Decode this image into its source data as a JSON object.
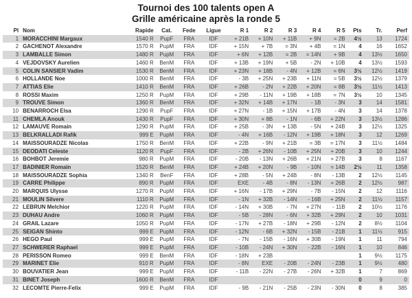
{
  "header": {
    "title": "Tournoi des 100 talents open A",
    "subtitle": "Grille américaine après la ronde 5"
  },
  "colors": {
    "stripe": "#d8d8d8",
    "text": "#3d3d3d",
    "title_text": "#1a1a1a"
  },
  "table": {
    "columns": [
      {
        "key": "pl",
        "label": "Pl"
      },
      {
        "key": "nom",
        "label": "Nom"
      },
      {
        "key": "rapide",
        "label": "Rapide"
      },
      {
        "key": "cat",
        "label": "Cat."
      },
      {
        "key": "fede",
        "label": "Fede"
      },
      {
        "key": "ligue",
        "label": "Ligue"
      },
      {
        "key": "r1",
        "label": "R 1"
      },
      {
        "key": "r2",
        "label": "R 2"
      },
      {
        "key": "r3",
        "label": "R 3"
      },
      {
        "key": "r4",
        "label": "R 4"
      },
      {
        "key": "r5",
        "label": "R 5"
      },
      {
        "key": "pts",
        "label": "Pts"
      },
      {
        "key": "tr",
        "label": "Tr."
      },
      {
        "key": "perf",
        "label": "Perf"
      }
    ],
    "rows": [
      {
        "pl": "1",
        "nom": "MORACCHINI Margaux",
        "rapide": "1540 R",
        "cat": "PupF",
        "fede": "FRA",
        "ligue": "IDF",
        "r1": "+ 21B",
        "r2": "+ 10N",
        "r3": "+ 11B",
        "r4": "+ 9N",
        "r5": "= 2B",
        "pts": "4½",
        "tr": "13",
        "perf": "1724"
      },
      {
        "pl": "2",
        "nom": "GACHENOT Alexandre",
        "rapide": "1570 R",
        "cat": "PupM",
        "fede": "FRA",
        "ligue": "IDF",
        "r1": "+ 15N",
        "r2": "+ 7B",
        "r3": "= 3N",
        "r4": "+ 4B",
        "r5": "= 1N",
        "pts": "4",
        "tr": "16",
        "perf": "1652"
      },
      {
        "pl": "3",
        "nom": "LAMBALLE Simon",
        "rapide": "1480 R",
        "cat": "PupM",
        "fede": "FRA",
        "ligue": "IDF",
        "r1": "+ 6N",
        "r2": "+ 12B",
        "r3": "= 2B",
        "r4": "= 14N",
        "r5": "+ 9B",
        "pts": "4",
        "tr": "13½",
        "perf": "1650"
      },
      {
        "pl": "4",
        "nom": "VEJDOVSKY Aurelien",
        "rapide": "1460 R",
        "cat": "BenM",
        "fede": "FRA",
        "ligue": "IDF",
        "r1": "+ 13B",
        "r2": "+ 19N",
        "r3": "+ 5B",
        "r4": "- 2N",
        "r5": "+ 10B",
        "pts": "4",
        "tr": "13½",
        "perf": "1593"
      },
      {
        "pl": "5",
        "nom": "COLIN SANSIER Vadim",
        "rapide": "1530 R",
        "cat": "BenM",
        "fede": "FRA",
        "ligue": "IDF",
        "r1": "+ 23N",
        "r2": "+ 18B",
        "r3": "- 4N",
        "r4": "+ 12B",
        "r5": "= 6N",
        "pts": "3½",
        "tr": "12½",
        "perf": "1419"
      },
      {
        "pl": "6",
        "nom": "HOLLANDE Noe",
        "rapide": "1000 R",
        "cat": "BenM",
        "fede": "FRA",
        "ligue": "IDF",
        "r1": "- 3B",
        "r2": "+ 25N",
        "r3": "+ 23B",
        "r4": "+ 11N",
        "r5": "= 5B",
        "pts": "3½",
        "tr": "12½",
        "perf": "1379"
      },
      {
        "pl": "7",
        "nom": "ATTIAS Elie",
        "rapide": "1410 R",
        "cat": "BenM",
        "fede": "FRA",
        "ligue": "IDF",
        "r1": "+ 26B",
        "r2": "- 2N",
        "r3": "+ 22B",
        "r4": "+ 20N",
        "r5": "= 8B",
        "pts": "3½",
        "tr": "11½",
        "perf": "1413"
      },
      {
        "pl": "8",
        "nom": "ROSSI Maxim",
        "rapide": "1250 R",
        "cat": "PupM",
        "fede": "FRA",
        "ligue": "IDF",
        "r1": "+ 29B",
        "r2": "- 11N",
        "r3": "+ 19B",
        "r4": "+ 18B",
        "r5": "= 7N",
        "pts": "3½",
        "tr": "10",
        "perf": "1345"
      },
      {
        "pl": "9",
        "nom": "TROUVE Simon",
        "rapide": "1360 R",
        "cat": "BenM",
        "fede": "FRA",
        "ligue": "IDF",
        "r1": "+ 32N",
        "r2": "+ 14B",
        "r3": "+ 17N",
        "r4": "- 1B",
        "r5": "- 3N",
        "pts": "3",
        "tr": "14",
        "perf": "1581"
      },
      {
        "pl": "10",
        "nom": "BENARROCH Elsa",
        "rapide": "1290 R",
        "cat": "PupF",
        "fede": "FRA",
        "ligue": "IDF",
        "r1": "+ 27N",
        "r2": "- 1B",
        "r3": "+ 15N",
        "r4": "+ 17B",
        "r5": "- 4N",
        "pts": "3",
        "tr": "14",
        "perf": "1378"
      },
      {
        "pl": "11",
        "nom": "CHEMLA Anouk",
        "rapide": "1430 R",
        "cat": "PupF",
        "fede": "FRA",
        "ligue": "IDF",
        "r1": "+ 30N",
        "r2": "+ 8B",
        "r3": "- 1N",
        "r4": "- 6B",
        "r5": "+ 22N",
        "pts": "3",
        "tr": "13½",
        "perf": "1286"
      },
      {
        "pl": "12",
        "nom": "LAMAUVE Romain",
        "rapide": "1290 R",
        "cat": "PupM",
        "fede": "FRA",
        "ligue": "IDF",
        "r1": "+ 25B",
        "r2": "- 3N",
        "r3": "+ 13B",
        "r4": "- 5N",
        "r5": "+ 24B",
        "pts": "3",
        "tr": "12½",
        "perf": "1325"
      },
      {
        "pl": "13",
        "nom": "BELKRALLADI Rafik",
        "rapide": "999 E",
        "cat": "PupM",
        "fede": "FRA",
        "ligue": "IDF",
        "r1": "- 4N",
        "r2": "+ 16B",
        "r3": "- 12N",
        "r4": "+ 19B",
        "r5": "+ 18N",
        "pts": "3",
        "tr": "12",
        "perf": "1269"
      },
      {
        "pl": "14",
        "nom": "MAISSOURADZE Nicolas",
        "rapide": "1750 R",
        "cat": "BenM",
        "fede": "FRA",
        "ligue": "IDF",
        "r1": "+ 22B",
        "r2": "- 9N",
        "r3": "+ 21B",
        "r4": "= 3B",
        "r5": "= 17N",
        "pts": "3",
        "tr": "11½",
        "perf": "1484"
      },
      {
        "pl": "15",
        "nom": "DEODATI Celeste",
        "rapide": "1120 R",
        "cat": "PupF",
        "fede": "FRA",
        "ligue": "IDF",
        "r1": "- 2B",
        "r2": "+ 26N",
        "r3": "- 10B",
        "r4": "+ 25N",
        "r5": "+ 20B",
        "pts": "3",
        "tr": "10",
        "perf": "1244"
      },
      {
        "pl": "16",
        "nom": "BOHBOT Jeremie",
        "rapide": "980 R",
        "cat": "PupM",
        "fede": "FRA",
        "ligue": "IDF",
        "r1": "- 20B",
        "r2": "- 13N",
        "r3": "+ 26B",
        "r4": "+ 21N",
        "r5": "+ 27B",
        "pts": "3",
        "tr": "8",
        "perf": "1167"
      },
      {
        "pl": "17",
        "nom": "BADINIER Romain",
        "rapide": "1520 R",
        "cat": "BenM",
        "fede": "FRA",
        "ligue": "IDF",
        "r1": "+ 24B",
        "r2": "+ 20N",
        "r3": "- 9B",
        "r4": "- 10N",
        "r5": "= 14B",
        "pts": "2½",
        "tr": "11",
        "perf": "1358"
      },
      {
        "pl": "18",
        "nom": "MAISSOURADZE Sophia",
        "rapide": "1340 R",
        "cat": "BenF",
        "fede": "FRA",
        "ligue": "IDF",
        "r1": "+ 28B",
        "r2": "- 5N",
        "r3": "+ 24B",
        "r4": "- 8N",
        "r5": "- 13B",
        "pts": "2",
        "tr": "12½",
        "perf": "1145"
      },
      {
        "pl": "19",
        "nom": "CARRE Philippe",
        "rapide": "890 R",
        "cat": "PupM",
        "fede": "FRA",
        "ligue": "IDF",
        "r1": "EXE",
        "r2": "- 4B",
        "r3": "- 8N",
        "r4": "- 13N",
        "r5": "+ 26B",
        "pts": "2",
        "tr": "12½",
        "perf": "987"
      },
      {
        "pl": "20",
        "nom": "MARQUIS Ulysse",
        "rapide": "1270 R",
        "cat": "PupM",
        "fede": "FRA",
        "ligue": "IDF",
        "r1": "+ 16N",
        "r2": "- 17B",
        "r3": "+ 29N",
        "r4": "- 7B",
        "r5": "- 15N",
        "pts": "2",
        "tr": "12",
        "perf": "1116"
      },
      {
        "pl": "21",
        "nom": "MOULIN Silvere",
        "rapide": "1110 R",
        "cat": "PupM",
        "fede": "FRA",
        "ligue": "IDF",
        "r1": "- 1N",
        "r2": "+ 32B",
        "r3": "- 14N",
        "r4": "- 16B",
        "r5": "+ 25N",
        "pts": "2",
        "tr": "11½",
        "perf": "1157"
      },
      {
        "pl": "22",
        "nom": "LEBRUN Melchior",
        "rapide": "1220 R",
        "cat": "PupM",
        "fede": "FRA",
        "ligue": "IDF",
        "r1": "- 14N",
        "r2": "+ 30B",
        "r3": "- 7N",
        "r4": "+ 27N",
        "r5": "- 11B",
        "pts": "2",
        "tr": "10½",
        "perf": "1176"
      },
      {
        "pl": "23",
        "nom": "DUHAU Andre",
        "rapide": "1060 R",
        "cat": "PupM",
        "fede": "FRA",
        "ligue": "IDF",
        "r1": "- 5B",
        "r2": "- 28N",
        "r3": "- 6N",
        "r4": "+ 32B",
        "r5": "+ 29N",
        "pts": "2",
        "tr": "10",
        "perf": "1031"
      },
      {
        "pl": "24",
        "nom": "GRAIL Lazare",
        "rapide": "1050 R",
        "cat": "PupM",
        "fede": "FRA",
        "ligue": "IDF",
        "r1": "- 17N",
        "r2": "+ 27B",
        "r3": "- 18N",
        "r4": "+ 29B",
        "r5": "- 12N",
        "pts": "2",
        "tr": "8½",
        "perf": "1104"
      },
      {
        "pl": "25",
        "nom": "SEIGAN Shinto",
        "rapide": "999 E",
        "cat": "PupM",
        "fede": "FRA",
        "ligue": "IDF",
        "r1": "- 12N",
        "r2": "- 6B",
        "r3": "+ 32N",
        "r4": "- 15B",
        "r5": "- 21B",
        "pts": "1",
        "tr": "11½",
        "perf": "915"
      },
      {
        "pl": "26",
        "nom": "HEGO Paul",
        "rapide": "999 E",
        "cat": "PupM",
        "fede": "FRA",
        "ligue": "IDF",
        "r1": "- 7N",
        "r2": "- 15B",
        "r3": "- 16N",
        "r4": "+ 30B",
        "r5": "- 19N",
        "pts": "1",
        "tr": "11",
        "perf": "794"
      },
      {
        "pl": "27",
        "nom": "SCHWERER Raphael",
        "rapide": "999 E",
        "cat": "PupM",
        "fede": "FRA",
        "ligue": "IDF",
        "r1": "- 10B",
        "r2": "- 24N",
        "r3": "+ 30N",
        "r4": "- 22B",
        "r5": "- 16N",
        "pts": "1",
        "tr": "10",
        "perf": "846"
      },
      {
        "pl": "28",
        "nom": "PERISSON Romeo",
        "rapide": "999 E",
        "cat": "BenM",
        "fede": "FRA",
        "ligue": "IDF",
        "r1": "- 18N",
        "r2": "+ 23B",
        "r3": "",
        "r4": "",
        "r5": "",
        "pts": "1",
        "tr": "9½",
        "perf": "1175"
      },
      {
        "pl": "29",
        "nom": "MARINET Elie",
        "rapide": "910 R",
        "cat": "PupM",
        "fede": "FRA",
        "ligue": "IDF",
        "r1": "- 8N",
        "r2": "EXE",
        "r3": "- 20B",
        "r4": "- 24N",
        "r5": "- 23B",
        "pts": "1",
        "tr": "9½",
        "perf": "480"
      },
      {
        "pl": "30",
        "nom": "BOUVATIER Jean",
        "rapide": "999 E",
        "cat": "PupM",
        "fede": "FRA",
        "ligue": "IDF",
        "r1": "- 11B",
        "r2": "- 22N",
        "r3": "- 27B",
        "r4": "- 26N",
        "r5": "+ 32B",
        "pts": "1",
        "tr": "7",
        "perf": "869"
      },
      {
        "pl": "31",
        "nom": "BINET Joseph",
        "rapide": "1600 R",
        "cat": "BenM",
        "fede": "FRA",
        "ligue": "IDF",
        "r1": "",
        "r2": "",
        "r3": "",
        "r4": "",
        "r5": "",
        "pts": "0",
        "tr": "9",
        "perf": "0"
      },
      {
        "pl": "32",
        "nom": "LECOMTE Pierre-Felix",
        "rapide": "999 E",
        "cat": "PupM",
        "fede": "FRA",
        "ligue": "IDF",
        "r1": "- 9B",
        "r2": "- 21N",
        "r3": "- 25B",
        "r4": "- 23N",
        "r5": "- 30N",
        "pts": "0",
        "tr": "8",
        "perf": "385"
      }
    ]
  }
}
